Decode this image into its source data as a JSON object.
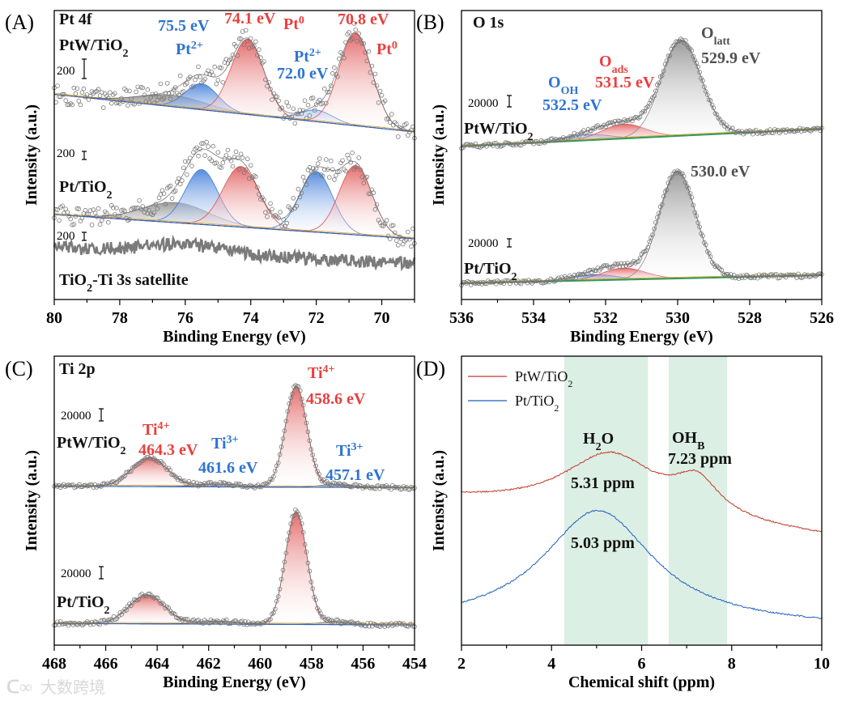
{
  "figure": {
    "watermark": "大数跨境",
    "colors": {
      "red": "#e8403f",
      "blue": "#2e74d0",
      "grey": "#505050",
      "black": "#111111",
      "highlight": "#dcefe4"
    }
  },
  "chart_data": [
    {
      "id": "A",
      "type": "line",
      "panel_label": "(A)",
      "xlabel": "Binding Energy (eV)",
      "ylabel": "Intensity (a.u.)",
      "xlim": [
        80,
        69
      ],
      "ticks": [
        80,
        78,
        76,
        74,
        72,
        70
      ],
      "minor_step": 1,
      "noise": 3.5,
      "samples": [
        {
          "name": "PtW/TiO2",
          "baseline": [
            71,
            58
          ],
          "scale_bar": "200",
          "peaks": [
            {
              "center": 76.4,
              "height": 4,
              "sigma": 1.0,
              "color": "grey"
            },
            {
              "center": 75.5,
              "height": 9,
              "sigma": 0.5,
              "color": "blue"
            },
            {
              "center": 74.1,
              "height": 26,
              "sigma": 0.5,
              "color": "red"
            },
            {
              "center": 72.0,
              "height": 4,
              "sigma": 0.5,
              "color": "blue"
            },
            {
              "center": 70.8,
              "height": 32,
              "sigma": 0.5,
              "color": "red"
            }
          ]
        },
        {
          "name": "Pt/TiO2",
          "baseline": [
            29.4,
            21
          ],
          "scale_bar": "200",
          "peaks": [
            {
              "center": 76.3,
              "height": 7,
              "sigma": 1.0,
              "color": "grey"
            },
            {
              "center": 75.5,
              "height": 19,
              "sigma": 0.5,
              "color": "blue"
            },
            {
              "center": 74.3,
              "height": 21,
              "sigma": 0.55,
              "color": "red"
            },
            {
              "center": 72.0,
              "height": 21,
              "sigma": 0.5,
              "color": "blue"
            },
            {
              "center": 70.8,
              "height": 24,
              "sigma": 0.5,
              "color": "red"
            }
          ]
        }
      ],
      "satellite": {
        "name": "TiO2-Ti 3s satellite",
        "baseline": [
          18,
          12.6
        ],
        "bump": {
          "center": 76,
          "height": 3,
          "sigma": 1.2
        },
        "scale_bar": "200"
      },
      "annotations": [
        {
          "parts": [
            [
              "Pt 4f"
            ]
          ],
          "color": "black"
        },
        {
          "parts": [
            [
              "PtW/TiO"
            ],
            [
              "2",
              "sub"
            ]
          ],
          "color": "black"
        },
        {
          "parts": [
            [
              "75.5 eV"
            ]
          ],
          "color": "blue"
        },
        {
          "parts": [
            [
              "Pt"
            ],
            [
              "2+",
              "sup"
            ]
          ],
          "color": "blue"
        },
        {
          "parts": [
            [
              "74.1 eV"
            ]
          ],
          "color": "red"
        },
        {
          "parts": [
            [
              "Pt"
            ],
            [
              "0",
              "sup"
            ]
          ],
          "color": "red"
        },
        {
          "parts": [
            [
              "70.8 eV"
            ]
          ],
          "color": "red"
        },
        {
          "parts": [
            [
              "Pt"
            ],
            [
              "0",
              "sup"
            ]
          ],
          "color": "red"
        },
        {
          "parts": [
            [
              "Pt"
            ],
            [
              "2+",
              "sup"
            ]
          ],
          "color": "blue"
        },
        {
          "parts": [
            [
              "72.0 eV"
            ]
          ],
          "color": "blue"
        },
        {
          "parts": [
            [
              "Pt/TiO"
            ],
            [
              "2",
              "sub"
            ]
          ],
          "color": "black"
        },
        {
          "parts": [
            [
              "TiO"
            ],
            [
              "2",
              "sub"
            ],
            [
              "-Ti 3s satellite"
            ]
          ],
          "color": "black"
        }
      ]
    },
    {
      "id": "B",
      "type": "line",
      "panel_label": "(B)",
      "xlabel": "Binding Energy (eV)",
      "ylabel": "Intensity (a.u.)",
      "xlim": [
        536,
        526
      ],
      "ticks": [
        536,
        534,
        532,
        530,
        528,
        526
      ],
      "minor_step": 1,
      "noise": 0.7,
      "samples": [
        {
          "name": "PtW/TiO2",
          "baseline": [
            53,
            59
          ],
          "scale_bar": "20000",
          "peaks": [
            {
              "center": 532.5,
              "height": 2,
              "sigma": 0.6,
              "color": "blue"
            },
            {
              "center": 531.5,
              "height": 5,
              "sigma": 0.6,
              "color": "red"
            },
            {
              "center": 529.9,
              "height": 33,
              "sigma": 0.55,
              "color": "grey"
            }
          ]
        },
        {
          "name": "Pt/TiO2",
          "baseline": [
            5.6,
            8.4
          ],
          "scale_bar": "20000",
          "peaks": [
            {
              "center": 532.3,
              "height": 2,
              "sigma": 0.6,
              "color": "blue"
            },
            {
              "center": 531.5,
              "height": 4,
              "sigma": 0.6,
              "color": "red"
            },
            {
              "center": 530.0,
              "height": 37,
              "sigma": 0.5,
              "color": "grey"
            }
          ]
        }
      ],
      "annotations": [
        {
          "parts": [
            [
              "O 1s"
            ]
          ],
          "color": "black"
        },
        {
          "parts": [
            [
              "O"
            ],
            [
              "latt",
              "sub"
            ]
          ],
          "color": "grey"
        },
        {
          "parts": [
            [
              "529.9 eV"
            ]
          ],
          "color": "grey"
        },
        {
          "parts": [
            [
              "O"
            ],
            [
              "ads",
              "sub"
            ]
          ],
          "color": "red"
        },
        {
          "parts": [
            [
              "531.5 eV"
            ]
          ],
          "color": "red"
        },
        {
          "parts": [
            [
              "O"
            ],
            [
              "OH",
              "sub"
            ]
          ],
          "color": "blue"
        },
        {
          "parts": [
            [
              "532.5 eV"
            ]
          ],
          "color": "blue"
        },
        {
          "parts": [
            [
              "PtW/TiO"
            ],
            [
              "2",
              "sub"
            ]
          ],
          "color": "black"
        },
        {
          "parts": [
            [
              "530.0 eV"
            ]
          ],
          "color": "grey"
        },
        {
          "parts": [
            [
              "Pt/TiO"
            ],
            [
              "2",
              "sub"
            ]
          ],
          "color": "black"
        }
      ]
    },
    {
      "id": "C",
      "type": "line",
      "panel_label": "(C)",
      "xlabel": "Binding Energy (eV)",
      "ylabel": "Intensity (a.u.)",
      "xlim": [
        468,
        454
      ],
      "ticks": [
        468,
        466,
        464,
        462,
        460,
        458,
        456,
        454
      ],
      "minor_step": 1,
      "noise": 0.7,
      "samples": [
        {
          "name": "PtW/TiO2",
          "baseline": [
            55,
            54.5
          ],
          "scale_bar": "20000",
          "peaks": [
            {
              "center": 464.3,
              "height": 10,
              "sigma": 0.7,
              "color": "red"
            },
            {
              "center": 461.6,
              "height": 1,
              "sigma": 0.8,
              "color": "blue"
            },
            {
              "center": 458.6,
              "height": 35,
              "sigma": 0.42,
              "color": "red"
            },
            {
              "center": 457.1,
              "height": 1,
              "sigma": 0.6,
              "color": "blue"
            }
          ]
        },
        {
          "name": "Pt/TiO2",
          "baseline": [
            7.5,
            7
          ],
          "scale_bar": "20000",
          "peaks": [
            {
              "center": 464.4,
              "height": 10,
              "sigma": 0.7,
              "color": "red"
            },
            {
              "center": 461.6,
              "height": 1,
              "sigma": 0.8,
              "color": "blue"
            },
            {
              "center": 458.6,
              "height": 39,
              "sigma": 0.42,
              "color": "red"
            },
            {
              "center": 457.1,
              "height": 1,
              "sigma": 0.6,
              "color": "blue"
            }
          ]
        }
      ],
      "annotations": [
        {
          "parts": [
            [
              "Ti 2p"
            ]
          ],
          "color": "black"
        },
        {
          "parts": [
            [
              "Ti"
            ],
            [
              "4+",
              "sup"
            ]
          ],
          "color": "red"
        },
        {
          "parts": [
            [
              "458.6 eV"
            ]
          ],
          "color": "red"
        },
        {
          "parts": [
            [
              "PtW/TiO"
            ],
            [
              "2",
              "sub"
            ]
          ],
          "color": "black"
        },
        {
          "parts": [
            [
              "Ti"
            ],
            [
              "4+",
              "sup"
            ]
          ],
          "color": "red"
        },
        {
          "parts": [
            [
              "464.3 eV"
            ]
          ],
          "color": "red"
        },
        {
          "parts": [
            [
              "Ti"
            ],
            [
              "3+",
              "sup"
            ]
          ],
          "color": "blue"
        },
        {
          "parts": [
            [
              "461.6 eV"
            ]
          ],
          "color": "blue"
        },
        {
          "parts": [
            [
              "Ti"
            ],
            [
              "3+",
              "sup"
            ]
          ],
          "color": "blue"
        },
        {
          "parts": [
            [
              "457.1 eV"
            ]
          ],
          "color": "blue"
        },
        {
          "parts": [
            [
              "Pt/TiO"
            ],
            [
              "2",
              "sub"
            ]
          ],
          "color": "black"
        }
      ]
    },
    {
      "id": "D",
      "type": "line",
      "panel_label": "(D)",
      "xlabel": "Chemical shift (ppm)",
      "ylabel": "Intensity (a.u.)",
      "xlim": [
        2,
        10
      ],
      "ticks": [
        2,
        4,
        6,
        8,
        10
      ],
      "minor_step": 1,
      "highlight_ranges": [
        [
          4.28,
          6.14
        ],
        [
          6.6,
          7.9
        ]
      ],
      "series": [
        {
          "name": [
            "PtW/TiO",
            "2"
          ],
          "color": "#c0392b",
          "baseline": [
            50,
            37.2
          ],
          "peaks": [
            {
              "center": 5.31,
              "height": 21,
              "gamma": 1.3
            },
            {
              "center": 7.23,
              "height": 12,
              "gamma": 0.6
            }
          ]
        },
        {
          "name": [
            "Pt/TiO",
            "2"
          ],
          "color": "#1f5fbf",
          "baseline": [
            7,
            6
          ],
          "peaks": [
            {
              "center": 5.03,
              "height": 40,
              "gamma": 1.5
            }
          ]
        }
      ],
      "annotations": [
        {
          "parts": [
            [
              "H"
            ],
            [
              "2",
              "sub"
            ],
            [
              "O"
            ]
          ],
          "color": "black"
        },
        {
          "parts": [
            [
              "OH"
            ],
            [
              "B",
              "sub"
            ]
          ],
          "color": "black"
        },
        {
          "parts": [
            [
              "7.23 ppm"
            ]
          ],
          "color": "black"
        },
        {
          "parts": [
            [
              "5.31 ppm"
            ]
          ],
          "color": "black"
        },
        {
          "parts": [
            [
              "5.03 ppm"
            ]
          ],
          "color": "black"
        }
      ]
    }
  ]
}
